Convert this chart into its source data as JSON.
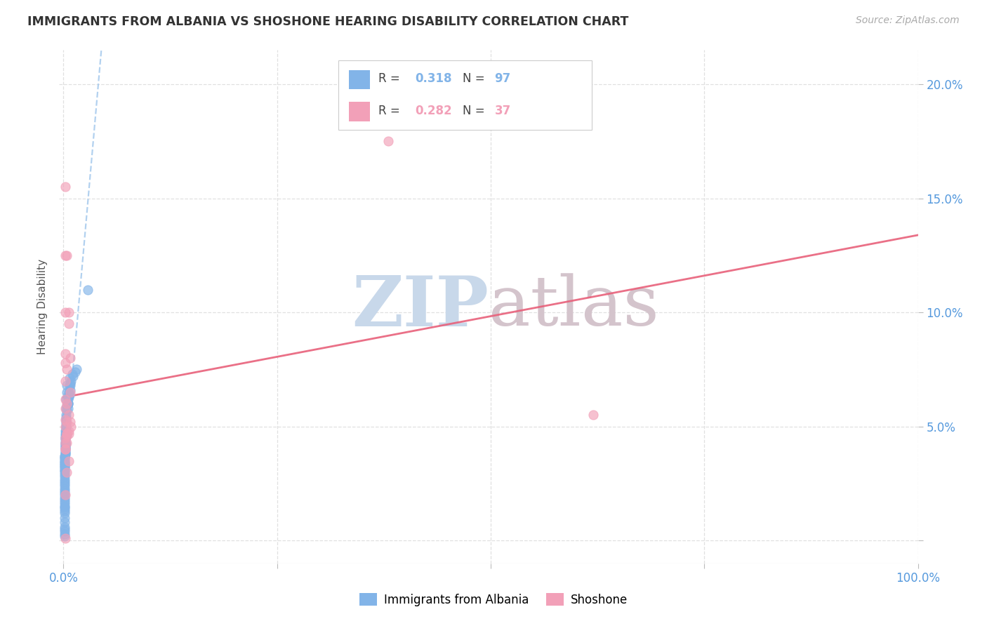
{
  "title": "IMMIGRANTS FROM ALBANIA VS SHOSHONE HEARING DISABILITY CORRELATION CHART",
  "source": "Source: ZipAtlas.com",
  "ylabel": "Hearing Disability",
  "xlim": [
    -0.005,
    1.0
  ],
  "ylim": [
    -0.01,
    0.215
  ],
  "yticks": [
    0.0,
    0.05,
    0.1,
    0.15,
    0.2
  ],
  "ytick_labels": [
    "",
    "5.0%",
    "10.0%",
    "15.0%",
    "20.0%"
  ],
  "xtick_positions": [
    0.0,
    0.25,
    0.5,
    0.75,
    1.0
  ],
  "xtick_labels": [
    "0.0%",
    "",
    "",
    "",
    "100.0%"
  ],
  "r_albania": "0.318",
  "n_albania": "97",
  "r_shoshone": "0.282",
  "n_shoshone": "37",
  "color_albania": "#82B4E8",
  "color_shoshone": "#F2A0B8",
  "trendline_albania_color": "#aaccee",
  "trendline_shoshone_color": "#e8607a",
  "watermark_zip_color": "#c8d8ea",
  "watermark_atlas_color": "#d4c4cc",
  "title_color": "#333333",
  "source_color": "#aaaaaa",
  "axis_tick_color": "#5599dd",
  "grid_color": "#e0e0e0",
  "albania_x": [
    0.005,
    0.004,
    0.003,
    0.007,
    0.004,
    0.005,
    0.003,
    0.004,
    0.003,
    0.005,
    0.003,
    0.003,
    0.003,
    0.004,
    0.003,
    0.003,
    0.003,
    0.003,
    0.002,
    0.003,
    0.002,
    0.002,
    0.003,
    0.002,
    0.002,
    0.002,
    0.002,
    0.002,
    0.002,
    0.006,
    0.009,
    0.006,
    0.011,
    0.002,
    0.002,
    0.002,
    0.002,
    0.002,
    0.002,
    0.002,
    0.002,
    0.002,
    0.001,
    0.001,
    0.001,
    0.001,
    0.006,
    0.001,
    0.001,
    0.001,
    0.001,
    0.001,
    0.001,
    0.001,
    0.001,
    0.001,
    0.001,
    0.001,
    0.001,
    0.001,
    0.001,
    0.001,
    0.001,
    0.007,
    0.001,
    0.007,
    0.008,
    0.006,
    0.01,
    0.001,
    0.001,
    0.001,
    0.001,
    0.001,
    0.001,
    0.001,
    0.001,
    0.001,
    0.001,
    0.001,
    0.014,
    0.008,
    0.005,
    0.001,
    0.001,
    0.001,
    0.001,
    0.001,
    0.001,
    0.028,
    0.008,
    0.005,
    0.005,
    0.015,
    0.001,
    0.001,
    0.001
  ],
  "albania_y": [
    0.063,
    0.068,
    0.062,
    0.071,
    0.065,
    0.06,
    0.058,
    0.057,
    0.055,
    0.06,
    0.053,
    0.052,
    0.054,
    0.059,
    0.051,
    0.05,
    0.05,
    0.049,
    0.048,
    0.048,
    0.047,
    0.046,
    0.046,
    0.045,
    0.045,
    0.044,
    0.043,
    0.043,
    0.042,
    0.065,
    0.07,
    0.063,
    0.072,
    0.042,
    0.041,
    0.041,
    0.04,
    0.04,
    0.039,
    0.039,
    0.038,
    0.038,
    0.037,
    0.037,
    0.036,
    0.036,
    0.063,
    0.035,
    0.035,
    0.034,
    0.034,
    0.033,
    0.033,
    0.032,
    0.032,
    0.031,
    0.031,
    0.03,
    0.029,
    0.028,
    0.027,
    0.026,
    0.025,
    0.068,
    0.024,
    0.064,
    0.069,
    0.064,
    0.073,
    0.023,
    0.022,
    0.021,
    0.02,
    0.019,
    0.018,
    0.017,
    0.016,
    0.015,
    0.014,
    0.013,
    0.074,
    0.066,
    0.06,
    0.012,
    0.01,
    0.008,
    0.006,
    0.004,
    0.015,
    0.11,
    0.068,
    0.062,
    0.058,
    0.075,
    0.005,
    0.003,
    0.002
  ],
  "shoshone_x": [
    0.002,
    0.002,
    0.004,
    0.006,
    0.002,
    0.006,
    0.002,
    0.008,
    0.002,
    0.004,
    0.002,
    0.008,
    0.002,
    0.004,
    0.002,
    0.006,
    0.002,
    0.004,
    0.002,
    0.006,
    0.002,
    0.004,
    0.002,
    0.006,
    0.004,
    0.008,
    0.009,
    0.006,
    0.004,
    0.002,
    0.38,
    0.004,
    0.002,
    0.62,
    0.002,
    0.004,
    0.002
  ],
  "shoshone_y": [
    0.155,
    0.125,
    0.125,
    0.1,
    0.1,
    0.095,
    0.082,
    0.08,
    0.078,
    0.075,
    0.07,
    0.065,
    0.062,
    0.06,
    0.058,
    0.055,
    0.053,
    0.052,
    0.05,
    0.048,
    0.045,
    0.043,
    0.04,
    0.035,
    0.03,
    0.052,
    0.05,
    0.047,
    0.047,
    0.043,
    0.175,
    0.046,
    0.02,
    0.055,
    0.04,
    0.047,
    0.001
  ],
  "legend_r1_text": "R = ",
  "legend_r1_val": "0.318",
  "legend_n1_text": "N = ",
  "legend_n1_val": "97",
  "legend_r2_text": "R = ",
  "legend_r2_val": "0.282",
  "legend_n2_text": "N = ",
  "legend_n2_val": "37"
}
